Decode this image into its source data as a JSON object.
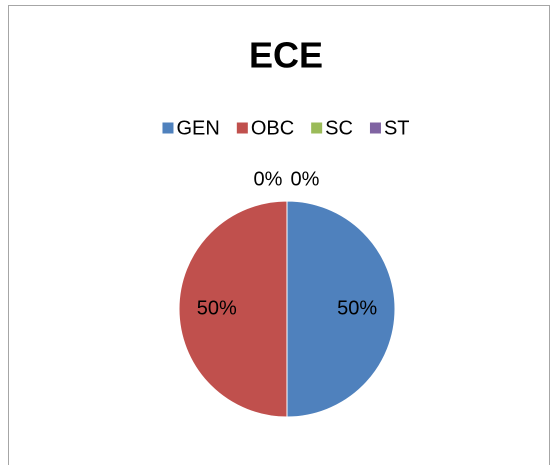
{
  "chart_data": {
    "type": "pie",
    "title": "ECE",
    "categories": [
      "GEN",
      "OBC",
      "SC",
      "ST"
    ],
    "values": [
      50,
      50,
      0,
      0
    ],
    "value_labels": [
      "50%",
      "50%",
      "0%",
      "0%"
    ],
    "colors": [
      "#4f81bd",
      "#c0504d",
      "#9bbb59",
      "#8064a2"
    ],
    "legend": "top"
  }
}
